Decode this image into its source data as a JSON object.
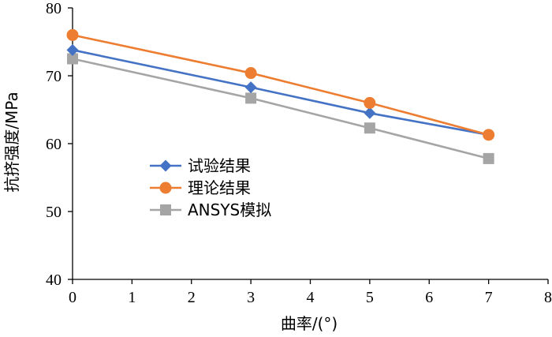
{
  "chart_data": {
    "type": "line",
    "xlabel": "曲率/(°)",
    "ylabel": "抗挤强度/MPa",
    "xlim": [
      0,
      8
    ],
    "ylim": [
      40,
      80
    ],
    "xticks": [
      "0",
      "1",
      "2",
      "3",
      "4",
      "5",
      "6",
      "7",
      "8"
    ],
    "yticks": [
      "40",
      "50",
      "60",
      "70",
      "80"
    ],
    "grid": false,
    "legend_position": "center-left",
    "x": [
      0,
      3,
      5,
      7
    ],
    "series": [
      {
        "name": "试验结果",
        "color": "#4472C4",
        "marker": "diamond",
        "values": [
          73.8,
          68.3,
          64.5,
          61.3
        ]
      },
      {
        "name": "理论结果",
        "color": "#ED7D31",
        "marker": "circle",
        "values": [
          76.0,
          70.4,
          66.0,
          61.3
        ]
      },
      {
        "name": "ANSYS模拟",
        "color": "#A5A5A5",
        "marker": "square",
        "values": [
          72.5,
          66.7,
          62.3,
          57.8
        ]
      }
    ]
  }
}
